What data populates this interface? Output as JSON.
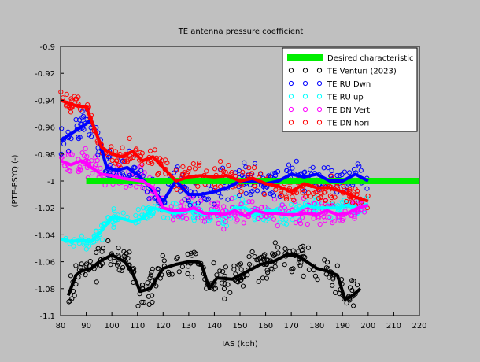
{
  "chart_data": {
    "type": "scatter",
    "title": "TE antenna pressure coefficient",
    "xlabel": "IAS (kph)",
    "ylabel": "(PTE-PSYQ (-)",
    "xlim": [
      80,
      220
    ],
    "ylim": [
      -1.1,
      -0.9
    ],
    "xticks": [
      "80",
      "90",
      "100",
      "110",
      "120",
      "130",
      "140",
      "150",
      "160",
      "170",
      "180",
      "190",
      "200",
      "210",
      "220"
    ],
    "yticks": [
      "-0.9",
      "-0.92",
      "-0.94",
      "-0.96",
      "-0.98",
      "-1",
      "-1.02",
      "-1.04",
      "-1.06",
      "-1.08",
      "-1.1"
    ],
    "grid": false,
    "legend_position": "top-right",
    "legend": [
      {
        "label": "Desired characteristic",
        "color": "#00ee00",
        "style": "thick-line"
      },
      {
        "label": "TE Venturi (2023)",
        "color": "#000000",
        "style": "circle"
      },
      {
        "label": "TE RU Dwn",
        "color": "#0000ff",
        "style": "circle"
      },
      {
        "label": "TE RU up",
        "color": "#00ffff",
        "style": "circle"
      },
      {
        "label": "TE DN Vert",
        "color": "#ff00ff",
        "style": "circle"
      },
      {
        "label": "TE DN hori",
        "color": "#ff0000",
        "style": "circle"
      }
    ],
    "desired": {
      "x": [
        90,
        220
      ],
      "y": [
        -1.0,
        -1.0
      ],
      "color": "#00ee00"
    },
    "series": [
      {
        "name": "TE Venturi (2023)",
        "color": "#000000",
        "x": [
          83,
          86,
          88,
          92,
          95,
          100,
          105,
          108,
          111,
          115,
          120,
          125,
          130,
          133,
          135,
          138,
          141,
          147,
          152,
          158,
          163,
          168,
          172,
          176,
          180,
          184,
          188,
          191,
          194,
          197
        ],
        "y": [
          -1.085,
          -1.07,
          -1.067,
          -1.065,
          -1.06,
          -1.055,
          -1.06,
          -1.068,
          -1.082,
          -1.08,
          -1.065,
          -1.062,
          -1.06,
          -1.06,
          -1.062,
          -1.08,
          -1.072,
          -1.073,
          -1.068,
          -1.062,
          -1.06,
          -1.055,
          -1.055,
          -1.06,
          -1.065,
          -1.067,
          -1.07,
          -1.088,
          -1.085,
          -1.08
        ],
        "spread": 0.018
      },
      {
        "name": "TE RU Dwn",
        "color": "#0000ff",
        "x": [
          80,
          84,
          88,
          92,
          95,
          98,
          102,
          106,
          110,
          115,
          120,
          125,
          130,
          135,
          140,
          145,
          150,
          155,
          160,
          165,
          170,
          175,
          180,
          185,
          190,
          195,
          200
        ],
        "y": [
          -0.97,
          -0.965,
          -0.96,
          -0.955,
          -0.97,
          -0.99,
          -0.992,
          -0.99,
          -0.995,
          -1.005,
          -1.015,
          -1.0,
          -1.01,
          -1.01,
          -1.008,
          -1.005,
          -1.0,
          -1.0,
          -1.002,
          -1.0,
          -0.995,
          -0.997,
          -0.995,
          -1.0,
          -1.0,
          -0.995,
          -1.0
        ],
        "spread": 0.018
      },
      {
        "name": "TE RU up",
        "color": "#00ffff",
        "x": [
          80,
          84,
          88,
          92,
          96,
          100,
          104,
          108,
          112,
          116,
          120,
          124,
          128,
          132,
          136,
          140,
          144,
          148,
          152,
          156,
          160,
          164,
          168,
          172,
          176,
          180,
          184,
          188,
          192,
          196,
          200
        ],
        "y": [
          -1.043,
          -1.045,
          -1.044,
          -1.045,
          -1.037,
          -1.027,
          -1.028,
          -1.03,
          -1.028,
          -1.02,
          -1.022,
          -1.024,
          -1.023,
          -1.022,
          -1.025,
          -1.022,
          -1.026,
          -1.02,
          -1.02,
          -1.025,
          -1.023,
          -1.022,
          -1.025,
          -1.022,
          -1.018,
          -1.02,
          -1.02,
          -1.02,
          -1.018,
          -1.02,
          -1.017
        ],
        "spread": 0.01
      },
      {
        "name": "TE DN Vert",
        "color": "#ff00ff",
        "x": [
          80,
          84,
          88,
          92,
          96,
          100,
          104,
          108,
          112,
          116,
          120,
          124,
          128,
          132,
          136,
          140,
          144,
          148,
          152,
          156,
          160,
          164,
          168,
          172,
          176,
          180,
          184,
          188,
          192,
          196,
          200
        ],
        "y": [
          -0.985,
          -0.988,
          -0.985,
          -0.99,
          -0.995,
          -0.996,
          -0.998,
          -0.999,
          -1.0,
          -1.005,
          -1.02,
          -1.022,
          -1.022,
          -1.02,
          -1.024,
          -1.024,
          -1.025,
          -1.022,
          -1.026,
          -1.022,
          -1.024,
          -1.024,
          -1.025,
          -1.025,
          -1.024,
          -1.025,
          -1.022,
          -1.025,
          -1.024,
          -1.02,
          -1.018
        ],
        "spread": 0.015
      },
      {
        "name": "TE DN hori",
        "color": "#ff0000",
        "x": [
          80,
          83,
          86,
          90,
          93,
          96,
          100,
          104,
          108,
          112,
          116,
          120,
          125,
          130,
          135,
          140,
          145,
          150,
          155,
          160,
          165,
          170,
          175,
          180,
          185,
          190,
          195,
          200
        ],
        "y": [
          -0.94,
          -0.942,
          -0.944,
          -0.945,
          -0.96,
          -0.975,
          -0.98,
          -0.982,
          -0.978,
          -0.985,
          -0.982,
          -0.99,
          -1.0,
          -0.997,
          -0.996,
          -0.997,
          -0.996,
          -1.0,
          -0.998,
          -1.002,
          -1.004,
          -1.008,
          -1.002,
          -1.005,
          -1.005,
          -1.008,
          -1.012,
          -1.015
        ],
        "spread": 0.015
      }
    ]
  }
}
